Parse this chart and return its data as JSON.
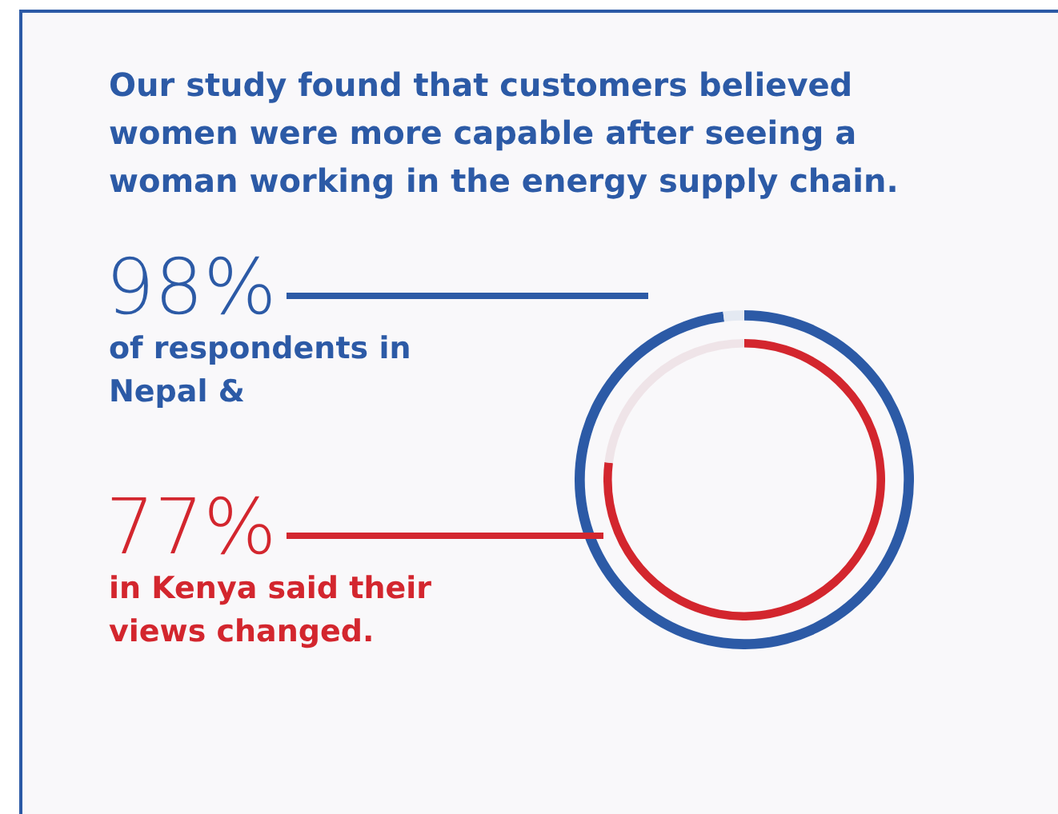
{
  "chart_data": [
    {
      "type": "donut",
      "title": "Our study found that customers believed women were more capable after seeing a woman working in the energy supply chain.",
      "categories": [
        null,
        null
      ],
      "values": [
        98,
        2
      ],
      "colors": [
        "#2c5aa6",
        "#e4e9f2"
      ],
      "annotations": [
        "98%",
        "of respondents in Nepal &"
      ]
    },
    {
      "type": "donut",
      "categories": [
        null,
        null
      ],
      "values": [
        77,
        23
      ],
      "colors": [
        "#d3262e",
        "#efe4e8"
      ],
      "annotations": [
        "77%",
        "in Kenya said their views changed."
      ]
    }
  ]
}
